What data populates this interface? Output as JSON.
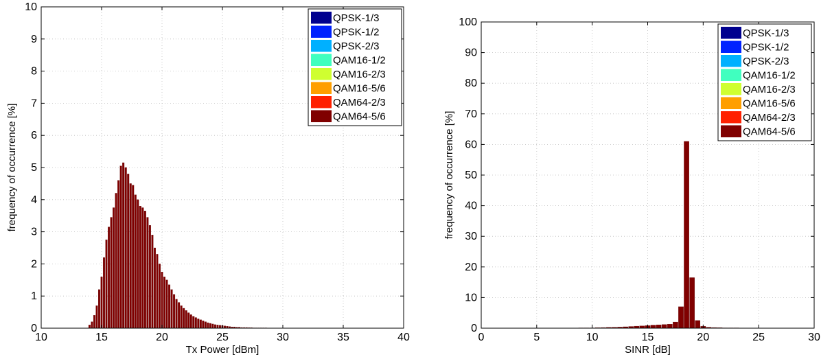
{
  "chart_data": [
    {
      "type": "bar",
      "xlabel": "Tx Power [dBm]",
      "ylabel": "frequency of occurrence [%]",
      "xlim": [
        10,
        40
      ],
      "ylim": [
        0,
        10
      ],
      "xticks": [
        "10",
        "15",
        "20",
        "25",
        "30",
        "35",
        "40"
      ],
      "yticks": [
        "0",
        "1",
        "2",
        "3",
        "4",
        "5",
        "6",
        "7",
        "8",
        "9",
        "10"
      ],
      "grid": true,
      "legend_position": "top-right",
      "series": [
        {
          "name": "QPSK-1/3",
          "color": "#00008f"
        },
        {
          "name": "QPSK-1/2",
          "color": "#0022ff"
        },
        {
          "name": "QPSK-2/3",
          "color": "#00b0ff"
        },
        {
          "name": "QAM16-1/2",
          "color": "#40ffbf"
        },
        {
          "name": "QAM16-2/3",
          "color": "#cfff30"
        },
        {
          "name": "QAM16-5/6",
          "color": "#ff9f00"
        },
        {
          "name": "QAM64-2/3",
          "color": "#ff2000"
        },
        {
          "name": "QAM64-5/6",
          "color": "#800000"
        }
      ],
      "bar_series": "QAM64-5/6",
      "bar_width": 0.15,
      "x": [
        14.0,
        14.2,
        14.4,
        14.6,
        14.8,
        15.0,
        15.2,
        15.4,
        15.6,
        15.8,
        16.0,
        16.2,
        16.4,
        16.6,
        16.8,
        17.0,
        17.2,
        17.4,
        17.6,
        17.8,
        18.0,
        18.2,
        18.4,
        18.6,
        18.8,
        19.0,
        19.2,
        19.4,
        19.6,
        19.8,
        20.0,
        20.2,
        20.4,
        20.6,
        20.8,
        21.0,
        21.2,
        21.4,
        21.6,
        21.8,
        22.0,
        22.2,
        22.4,
        22.6,
        22.8,
        23.0,
        23.2,
        23.4,
        23.6,
        23.8,
        24.0,
        24.2,
        24.4,
        24.6,
        24.8,
        25.0,
        25.2,
        25.4,
        25.6,
        25.8,
        26.0,
        26.2,
        26.4,
        26.6,
        26.8,
        27.0,
        27.2,
        27.4,
        27.6,
        27.8,
        28.0,
        28.2,
        28.4,
        28.6,
        28.8,
        29.0,
        29.2,
        29.4,
        29.6,
        29.8,
        30.0
      ],
      "values": [
        0.1,
        0.2,
        0.4,
        0.7,
        1.2,
        1.6,
        2.2,
        2.75,
        3.15,
        3.45,
        3.75,
        4.2,
        4.6,
        5.05,
        5.15,
        5.0,
        4.8,
        4.5,
        4.45,
        4.15,
        4.0,
        3.8,
        3.75,
        3.65,
        3.45,
        3.2,
        2.9,
        2.5,
        2.3,
        2.0,
        1.75,
        1.6,
        1.5,
        1.35,
        1.2,
        1.05,
        0.9,
        0.8,
        0.7,
        0.62,
        0.55,
        0.48,
        0.42,
        0.37,
        0.33,
        0.29,
        0.26,
        0.23,
        0.2,
        0.17,
        0.15,
        0.13,
        0.11,
        0.1,
        0.09,
        0.08,
        0.07,
        0.06,
        0.05,
        0.04,
        0.04,
        0.03,
        0.03,
        0.02,
        0.02,
        0.02,
        0.015,
        0.015,
        0.01,
        0.01,
        0.01,
        0.01,
        0.01,
        0.01,
        0.005,
        0.005,
        0.005,
        0.005,
        0.005,
        0.005,
        0.005
      ]
    },
    {
      "type": "bar",
      "xlabel": "SINR [dB]",
      "ylabel": "frequency of occurrence [%]",
      "xlim": [
        0,
        30
      ],
      "ylim": [
        0,
        100
      ],
      "xticks": [
        "0",
        "5",
        "10",
        "15",
        "20",
        "25",
        "30"
      ],
      "yticks": [
        "0",
        "10",
        "20",
        "30",
        "40",
        "50",
        "60",
        "70",
        "80",
        "90",
        "100"
      ],
      "grid": true,
      "legend_position": "top-right",
      "series": [
        {
          "name": "QPSK-1/3",
          "color": "#00008f"
        },
        {
          "name": "QPSK-1/2",
          "color": "#0022ff"
        },
        {
          "name": "QPSK-2/3",
          "color": "#00b0ff"
        },
        {
          "name": "QAM16-1/2",
          "color": "#40ffbf"
        },
        {
          "name": "QAM16-2/3",
          "color": "#cfff30"
        },
        {
          "name": "QAM16-5/6",
          "color": "#ff9f00"
        },
        {
          "name": "QAM64-2/3",
          "color": "#ff2000"
        },
        {
          "name": "QAM64-5/6",
          "color": "#800000"
        }
      ],
      "bar_series": "QAM64-5/6",
      "bar_width": 0.45,
      "x": [
        4.0,
        4.5,
        5.0,
        5.5,
        6.0,
        6.5,
        7.0,
        7.5,
        8.0,
        8.5,
        9.0,
        9.5,
        10.0,
        10.5,
        11.0,
        11.5,
        12.0,
        12.5,
        13.0,
        13.5,
        14.0,
        14.5,
        15.0,
        15.5,
        16.0,
        16.5,
        17.0,
        17.5,
        18.0,
        18.5,
        19.0,
        19.5,
        20.0,
        20.5,
        21.0,
        21.5,
        22.0,
        22.5,
        23.0,
        23.5,
        24.0,
        24.5,
        25.0,
        25.5,
        26.0,
        26.5,
        27.0,
        27.5,
        28.0,
        28.5,
        29.0
      ],
      "values": [
        0.05,
        0.05,
        0.05,
        0.05,
        0.05,
        0.05,
        0.05,
        0.05,
        0.05,
        0.05,
        0.1,
        0.1,
        0.1,
        0.15,
        0.2,
        0.25,
        0.3,
        0.35,
        0.45,
        0.55,
        0.65,
        0.75,
        0.85,
        1.0,
        1.1,
        1.2,
        1.3,
        2.0,
        7.0,
        61.0,
        16.5,
        2.5,
        0.6,
        0.3,
        0.2,
        0.15,
        0.1,
        0.1,
        0.1,
        0.05,
        0.05,
        0.05,
        0.05,
        0.05,
        0.05,
        0.05,
        0.05,
        0.05,
        0.05,
        0.05,
        0.05
      ]
    }
  ]
}
